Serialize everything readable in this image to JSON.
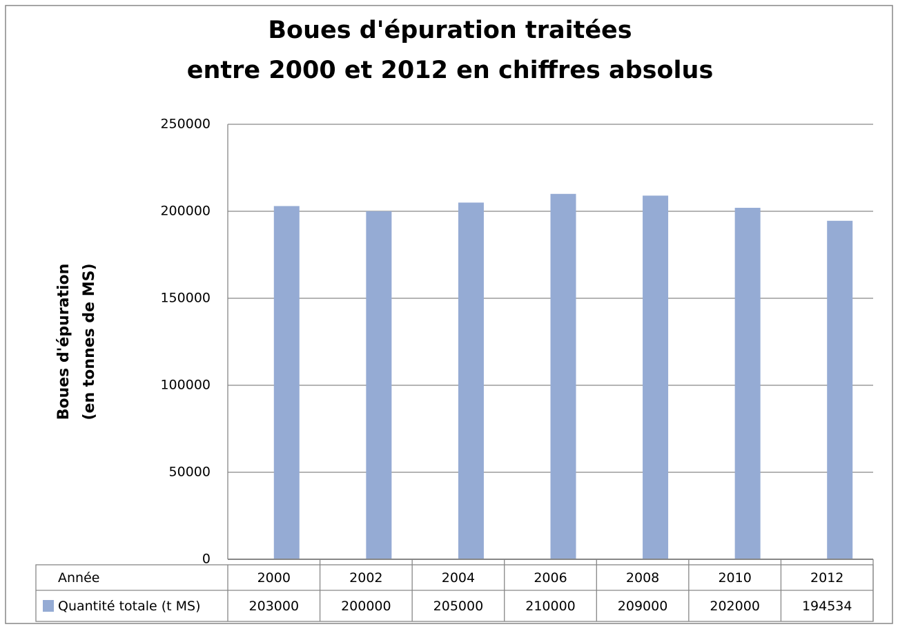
{
  "chart_data": {
    "type": "bar",
    "title": [
      "Boues d'épuration traitées",
      "entre 2000 et 2012 en chiffres absolus"
    ],
    "ylabel": [
      "Boues d'épuration",
      "(en tonnes de MS)"
    ],
    "table_header": "Année",
    "categories": [
      "2000",
      "2002",
      "2004",
      "2006",
      "2008",
      "2010",
      "2012"
    ],
    "series": [
      {
        "name": "Quantité totale (t MS)",
        "color": "#95abd4",
        "values": [
          203000,
          200000,
          205000,
          210000,
          209000,
          202000,
          194534
        ]
      }
    ],
    "ylim": [
      0,
      250000
    ],
    "yticks": [
      0,
      50000,
      100000,
      150000,
      200000,
      250000
    ],
    "grid": true
  }
}
